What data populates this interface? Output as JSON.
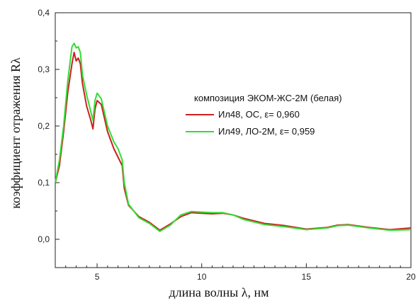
{
  "chart_data": {
    "type": "line",
    "xlabel": "длина волны λ, нм",
    "ylabel": "коэффициент отражения Rλ",
    "xlim": [
      3,
      20
    ],
    "ylim": [
      -0.05,
      0.4
    ],
    "x_ticks": [
      5,
      10,
      15,
      20
    ],
    "x_tick_labels": [
      "5",
      "10",
      "15",
      "20"
    ],
    "y_ticks": [
      0.0,
      0.1,
      0.2,
      0.3,
      0.4
    ],
    "y_tick_labels": [
      "0,0",
      "0,1",
      "0,2",
      "0,3",
      "0,4"
    ],
    "grid": false,
    "legend": {
      "title": "композиция ЭКОМ-ЖС-2М (белая)",
      "placement": "center-right"
    },
    "series": [
      {
        "name": "Ил48, ОС, ε= 0,960",
        "color": "#cc2020",
        "points": [
          [
            3.0,
            0.1
          ],
          [
            3.2,
            0.13
          ],
          [
            3.4,
            0.19
          ],
          [
            3.6,
            0.26
          ],
          [
            3.8,
            0.31
          ],
          [
            3.9,
            0.33
          ],
          [
            4.0,
            0.315
          ],
          [
            4.1,
            0.32
          ],
          [
            4.2,
            0.31
          ],
          [
            4.3,
            0.275
          ],
          [
            4.5,
            0.235
          ],
          [
            4.7,
            0.21
          ],
          [
            4.8,
            0.195
          ],
          [
            4.9,
            0.23
          ],
          [
            5.0,
            0.245
          ],
          [
            5.2,
            0.238
          ],
          [
            5.5,
            0.19
          ],
          [
            5.8,
            0.16
          ],
          [
            6.0,
            0.145
          ],
          [
            6.2,
            0.13
          ],
          [
            6.3,
            0.09
          ],
          [
            6.5,
            0.06
          ],
          [
            7.0,
            0.04
          ],
          [
            7.5,
            0.03
          ],
          [
            8.0,
            0.016
          ],
          [
            8.5,
            0.027
          ],
          [
            9.0,
            0.04
          ],
          [
            9.5,
            0.047
          ],
          [
            10.0,
            0.046
          ],
          [
            10.5,
            0.045
          ],
          [
            11.0,
            0.046
          ],
          [
            11.5,
            0.043
          ],
          [
            12.0,
            0.037
          ],
          [
            13.0,
            0.028
          ],
          [
            14.0,
            0.024
          ],
          [
            15.0,
            0.018
          ],
          [
            16.0,
            0.021
          ],
          [
            16.5,
            0.025
          ],
          [
            17.0,
            0.026
          ],
          [
            18.0,
            0.021
          ],
          [
            19.0,
            0.017
          ],
          [
            20.0,
            0.02
          ]
        ]
      },
      {
        "name": "Ил49, ЛО-2М, ε= 0,959",
        "color": "#33dd33",
        "points": [
          [
            3.0,
            0.1
          ],
          [
            3.2,
            0.14
          ],
          [
            3.4,
            0.2
          ],
          [
            3.6,
            0.28
          ],
          [
            3.8,
            0.34
          ],
          [
            3.9,
            0.346
          ],
          [
            4.0,
            0.338
          ],
          [
            4.1,
            0.34
          ],
          [
            4.2,
            0.33
          ],
          [
            4.3,
            0.29
          ],
          [
            4.5,
            0.255
          ],
          [
            4.7,
            0.225
          ],
          [
            4.8,
            0.21
          ],
          [
            4.9,
            0.245
          ],
          [
            5.0,
            0.258
          ],
          [
            5.2,
            0.248
          ],
          [
            5.5,
            0.2
          ],
          [
            5.8,
            0.172
          ],
          [
            6.0,
            0.16
          ],
          [
            6.2,
            0.14
          ],
          [
            6.3,
            0.1
          ],
          [
            6.5,
            0.062
          ],
          [
            7.0,
            0.038
          ],
          [
            7.5,
            0.028
          ],
          [
            8.0,
            0.014
          ],
          [
            8.5,
            0.025
          ],
          [
            9.0,
            0.043
          ],
          [
            9.5,
            0.049
          ],
          [
            10.0,
            0.048
          ],
          [
            10.5,
            0.047
          ],
          [
            11.0,
            0.047
          ],
          [
            11.5,
            0.043
          ],
          [
            12.0,
            0.035
          ],
          [
            13.0,
            0.026
          ],
          [
            14.0,
            0.022
          ],
          [
            15.0,
            0.017
          ],
          [
            16.0,
            0.02
          ],
          [
            16.5,
            0.024
          ],
          [
            17.0,
            0.025
          ],
          [
            18.0,
            0.02
          ],
          [
            19.0,
            0.016
          ],
          [
            20.0,
            0.017
          ]
        ]
      }
    ]
  }
}
